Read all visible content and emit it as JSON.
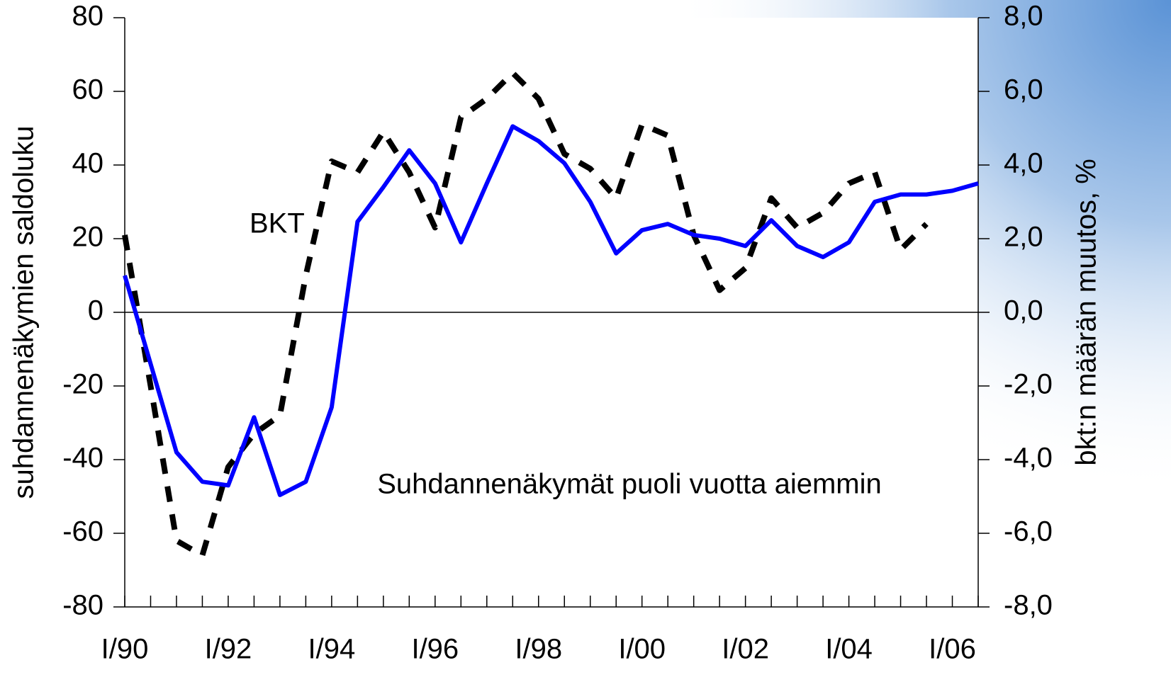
{
  "chart_data": {
    "type": "line",
    "categories": [
      "I/90",
      null,
      null,
      null,
      "I/92",
      null,
      null,
      null,
      "I/94",
      null,
      null,
      null,
      "I/96",
      null,
      null,
      null,
      "I/98",
      null,
      null,
      null,
      "I/00",
      null,
      null,
      null,
      "I/02",
      null,
      null,
      null,
      "I/04",
      null,
      null,
      null,
      "I/06",
      null
    ],
    "series": [
      {
        "color": "#0000ff",
        "values": [
          10,
          -14,
          -38,
          -46,
          -47,
          -28.5,
          -49.6,
          -46,
          -25.8,
          24.6,
          34,
          44,
          35,
          19,
          35,
          50.5,
          46.5,
          40.5,
          30,
          16,
          22.3,
          24,
          21,
          20,
          18,
          25,
          18,
          15,
          19,
          30,
          32,
          32,
          33,
          35
        ]
      },
      {
        "color": "#000000",
        "axis": "y2",
        "dashed": true,
        "values": [
          2.1,
          -2.0,
          -6.2,
          -6.6,
          -4.2,
          -3.3,
          -2.8,
          1.0,
          4.1,
          3.8,
          4.9,
          3.8,
          2.3,
          5.3,
          5.8,
          6.5,
          5.8,
          4.3,
          3.9,
          3.1,
          5.1,
          4.8,
          2.1,
          0.6,
          1.2,
          3.1,
          2.3,
          2.7,
          3.5,
          3.8,
          1.7,
          2.4,
          null,
          null
        ]
      }
    ],
    "ylabel": "suhdannenäkymien saldoluku",
    "y2label": "bkt:n määrän muutos, %",
    "ylim": [
      -80,
      80
    ],
    "yticks": [
      -80,
      -60,
      -40,
      -20,
      0,
      20,
      40,
      60,
      80
    ],
    "y2lim": [
      -8,
      8
    ],
    "y2ticks": [
      {
        "value": -8,
        "label": "-8,0"
      },
      {
        "value": -6,
        "label": "-6,0"
      },
      {
        "value": -4,
        "label": "-4,0"
      },
      {
        "value": -2,
        "label": "-2,0"
      },
      {
        "value": 0,
        "label": "0,0"
      },
      {
        "value": 2,
        "label": "2,0"
      },
      {
        "value": 4,
        "label": "4,0"
      },
      {
        "value": 6,
        "label": "6,0"
      },
      {
        "value": 8,
        "label": "8,0"
      }
    ],
    "annotations": [
      "BKT",
      "Suhdannenäkymät puoli vuotta aiemmin"
    ]
  }
}
